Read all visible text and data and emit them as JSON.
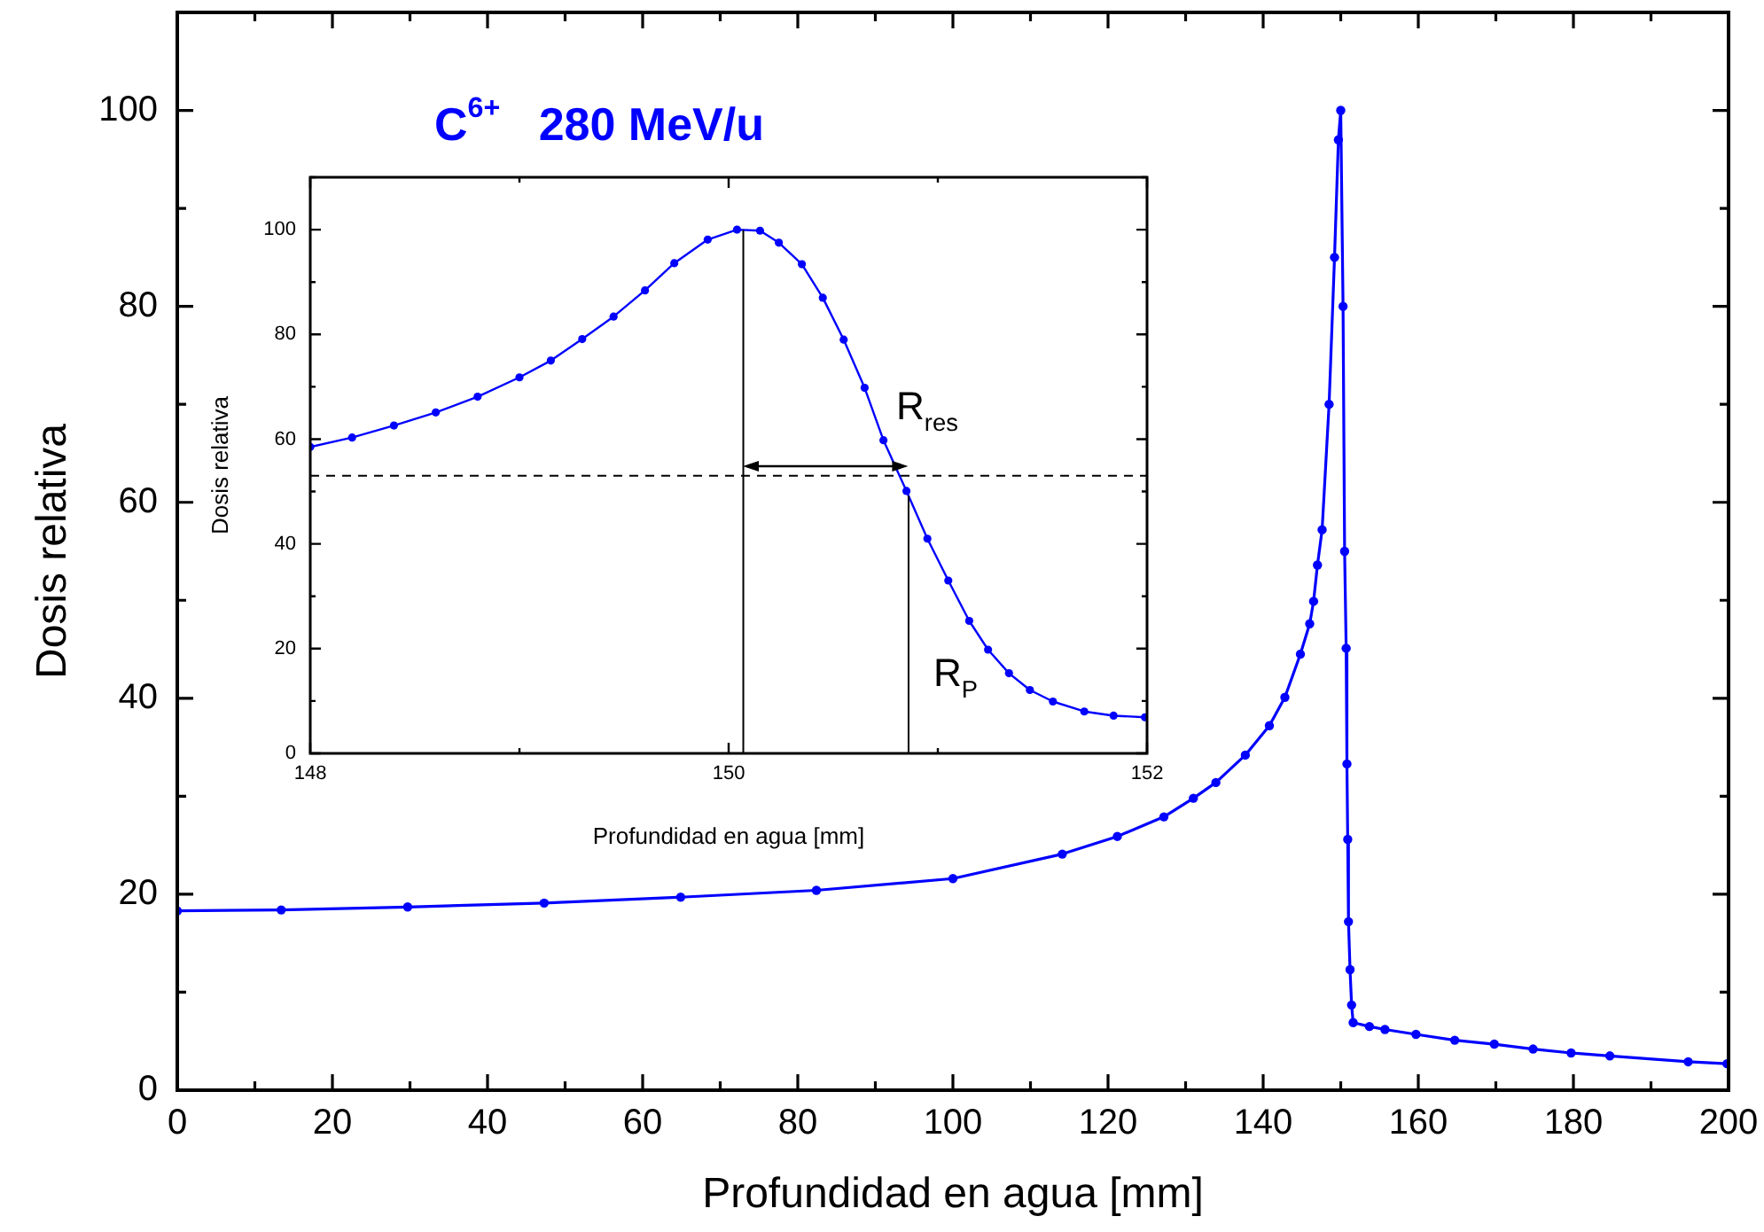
{
  "chart_data": [
    {
      "type": "line",
      "xlabel": "Profundidad en agua [mm]",
      "ylabel": "Dosis relativa",
      "annotations": [
        "C$^{6+}$   280 MeV/u"
      ],
      "marker": "circle",
      "line_style": "solid",
      "grid": false,
      "legend": false,
      "xlim": [
        0,
        200
      ],
      "ylim": [
        0,
        110
      ],
      "xticks": [
        0,
        {
          "value": 10,
          "label": null
        },
        20,
        {
          "value": 30,
          "label": null
        },
        40,
        {
          "value": 50,
          "label": null
        },
        60,
        {
          "value": 70,
          "label": null
        },
        80,
        {
          "value": 90,
          "label": null
        },
        100,
        {
          "value": 110,
          "label": null
        },
        120,
        {
          "value": 130,
          "label": null
        },
        140,
        {
          "value": 150,
          "label": null
        },
        160,
        {
          "value": 170,
          "label": null
        },
        180,
        {
          "value": 190,
          "label": null
        },
        200
      ],
      "yticks": [
        0,
        {
          "value": 10,
          "label": null
        },
        20,
        {
          "value": 30,
          "label": null
        },
        40,
        {
          "value": 50,
          "label": null
        },
        60,
        {
          "value": 70,
          "label": null
        },
        80,
        {
          "value": 90,
          "label": null
        },
        100,
        {
          "value": 110,
          "label": null
        }
      ],
      "series": [
        {
          "color": "#0000ff",
          "x": [
            0,
            13.4,
            29.7,
            47.3,
            64.9,
            82.4,
            100,
            114.1,
            121.2,
            127.2,
            131,
            133.9,
            137.7,
            140.8,
            142.8,
            144.8,
            146,
            146.5,
            147,
            147.6,
            148.5,
            149.2,
            149.7,
            150,
            150.3,
            150.5,
            150.7,
            150.8,
            150.9,
            151,
            151.2,
            151.4,
            151.6,
            153.7,
            155.7,
            159.7,
            164.7,
            169.8,
            174.8,
            179.7,
            184.7,
            194.8,
            199.8
          ],
          "values": [
            18.3,
            18.4,
            18.7,
            19.1,
            19.7,
            20.4,
            21.6,
            24.1,
            25.9,
            27.9,
            29.8,
            31.4,
            34.2,
            37.2,
            40.1,
            44.5,
            47.6,
            49.9,
            53.6,
            57.2,
            70,
            85,
            97,
            100,
            80,
            55,
            45.1,
            33.3,
            25.6,
            17.2,
            12.3,
            8.7,
            6.9,
            6.5,
            6.2,
            5.7,
            5.1,
            4.7,
            4.2,
            3.8,
            3.5,
            2.9,
            2.7
          ]
        }
      ]
    },
    {
      "type": "line",
      "xlabel": "Profundidad en agua [mm]",
      "ylabel": "Dosis relativa",
      "annotations": [
        "R$_{res}$"
      ],
      "marker": "circle",
      "line_style": "solid",
      "grid": false,
      "legend": false,
      "xlim": [
        148,
        152
      ],
      "ylim": [
        0,
        110
      ],
      "xticks": [
        148,
        {
          "value": 149,
          "label": null
        },
        150,
        {
          "value": 151,
          "label": null
        },
        152
      ],
      "yticks": [
        0,
        {
          "value": 10,
          "label": null
        },
        20,
        {
          "value": 30,
          "label": null
        },
        40,
        {
          "value": 50,
          "label": null
        },
        60,
        {
          "value": 70,
          "label": null
        },
        80,
        {
          "value": 90,
          "label": null
        },
        100,
        {
          "value": 110,
          "label": null
        }
      ],
      "ref_lines": [
        {
          "axis": "y",
          "value": 53,
          "line_style": "dashed",
          "color": "#000000"
        },
        {
          "axis": "x",
          "value": 150.07,
          "line_style": "solid",
          "color": "#000000"
        },
        {
          "axis": "x",
          "value": 150.86,
          "line_style": "solid",
          "color": "#000000",
          "label": "R$_{P}$"
        }
      ],
      "series": [
        {
          "color": "#0000ff",
          "x": [
            148,
            148.2,
            148.4,
            148.6,
            148.8,
            149,
            149.15,
            149.3,
            149.45,
            149.6,
            149.74,
            149.9,
            150.04,
            150.15,
            150.24,
            150.35,
            150.45,
            150.55,
            150.65,
            150.74,
            150.85,
            150.95,
            151.05,
            151.15,
            151.24,
            151.34,
            151.44,
            151.55,
            151.7,
            151.84,
            151.99
          ],
          "values": [
            58.5,
            60.3,
            62.6,
            65.1,
            68.1,
            71.8,
            75,
            79.1,
            83.4,
            88.4,
            93.6,
            98.1,
            100,
            99.8,
            97.5,
            93.4,
            87,
            79,
            69.8,
            59.8,
            50.1,
            41,
            33,
            25.3,
            19.8,
            15.3,
            12.1,
            9.9,
            8,
            7.2,
            6.9
          ]
        }
      ]
    }
  ]
}
